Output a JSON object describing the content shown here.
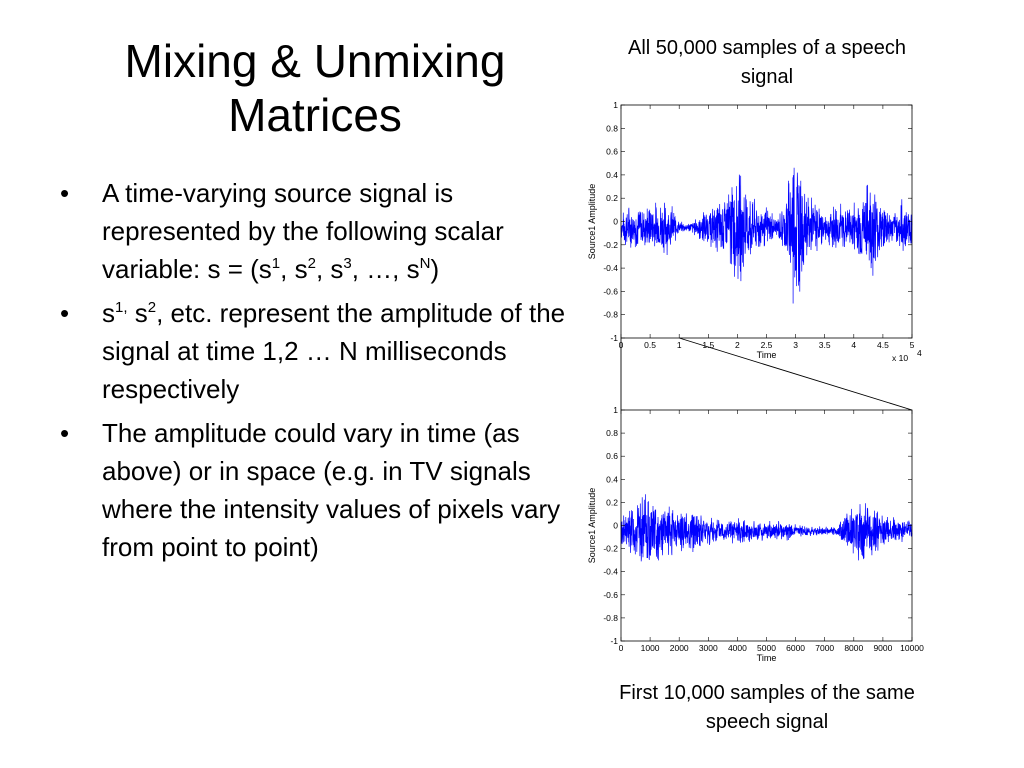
{
  "slide": {
    "title_line1": "Mixing & Unmixing",
    "title_line2": "Matrices",
    "bullets": {
      "b1": {
        "part1": "A time-varying source signal is represented by the following scalar variable: s = (s",
        "sup1": "1",
        "part2": ", s",
        "sup2": "2",
        "part3": ", s",
        "sup3": "3",
        "part4": ", …, s",
        "sup4": "N",
        "part5": ")"
      },
      "b2": {
        "part1": "s",
        "sup1": "1,",
        "part2": " s",
        "sup2": "2",
        "part3": ", etc. represent the amplitude of the signal at time 1,2 … N milliseconds respectively"
      },
      "b3": {
        "text": "The amplitude could vary in time (as above) or in space (e.g. in TV signals where the intensity values of pixels vary from point to point)"
      },
      "bullet_symbol": "•"
    },
    "caption_top": "All 50,000 samples of a speech signal",
    "caption_bottom": "First 10,000 samples of the same speech signal"
  },
  "chart_data": [
    {
      "type": "line",
      "color": "#0000ff",
      "xlabel": "Time",
      "ylabel": "Source1 Amplitude",
      "x_multiplier": "x 10",
      "x_multiplier_exp": "4",
      "xlim": [
        0,
        5
      ],
      "ylim": [
        -1,
        1
      ],
      "xticks": [
        "0",
        "0.5",
        "1",
        "1.5",
        "2",
        "2.5",
        "3",
        "3.5",
        "4",
        "4.5",
        "5"
      ],
      "yticks": [
        "1",
        "0.8",
        "0.6",
        "0.4",
        "0.2",
        "0",
        "-0.2",
        "-0.4",
        "-0.6",
        "-0.8",
        "-1"
      ],
      "envelope": {
        "x": [
          0,
          0.1,
          0.3,
          0.5,
          0.7,
          0.9,
          1.0,
          1.2,
          1.4,
          1.6,
          1.8,
          2.0,
          2.1,
          2.3,
          2.5,
          2.7,
          2.85,
          2.95,
          3.0,
          3.05,
          3.15,
          3.3,
          3.5,
          3.7,
          3.9,
          4.1,
          4.3,
          4.5,
          4.7,
          4.85,
          5.0
        ],
        "amp": [
          0.1,
          0.22,
          0.2,
          0.22,
          0.28,
          0.2,
          0.05,
          0.05,
          0.15,
          0.2,
          0.35,
          0.55,
          0.5,
          0.25,
          0.2,
          0.1,
          0.35,
          0.8,
          1.0,
          0.75,
          0.35,
          0.28,
          0.12,
          0.25,
          0.2,
          0.3,
          0.5,
          0.25,
          0.12,
          0.3,
          0.15
        ]
      }
    },
    {
      "type": "line",
      "color": "#0000ff",
      "xlabel": "Time",
      "ylabel": "Source1 Amplitude",
      "xlim": [
        0,
        10000
      ],
      "ylim": [
        -1,
        1
      ],
      "xticks": [
        "0",
        "1000",
        "2000",
        "3000",
        "4000",
        "5000",
        "6000",
        "7000",
        "8000",
        "9000",
        "10000"
      ],
      "yticks": [
        "1",
        "0.8",
        "0.6",
        "0.4",
        "0.2",
        "0",
        "-0.2",
        "-0.4",
        "-0.6",
        "-0.8",
        "-1"
      ],
      "envelope": {
        "x": [
          0,
          500,
          1000,
          1500,
          2000,
          2500,
          3000,
          3500,
          4000,
          4500,
          5000,
          5500,
          6000,
          6500,
          7000,
          7400,
          7700,
          8000,
          8300,
          8600,
          9000,
          9500,
          10000
        ],
        "amp": [
          0.15,
          0.3,
          0.35,
          0.25,
          0.2,
          0.2,
          0.15,
          0.12,
          0.12,
          0.1,
          0.1,
          0.1,
          0.07,
          0.05,
          0.04,
          0.05,
          0.15,
          0.3,
          0.3,
          0.25,
          0.18,
          0.12,
          0.1
        ]
      }
    }
  ]
}
